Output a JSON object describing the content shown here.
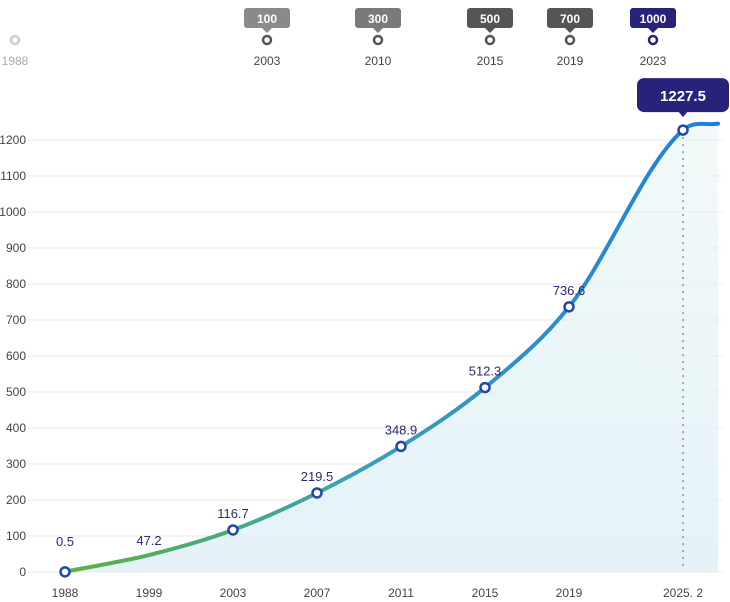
{
  "timeline": {
    "points": [
      {
        "year": "1988",
        "badge": null
      },
      {
        "year": "2003",
        "badge": "100"
      },
      {
        "year": "2010",
        "badge": "300"
      },
      {
        "year": "2015",
        "badge": "500"
      },
      {
        "year": "2019",
        "badge": "700"
      },
      {
        "year": "2023",
        "badge": "1000"
      }
    ]
  },
  "chart_data": {
    "type": "line",
    "categories": [
      "1988",
      "1999",
      "2003",
      "2007",
      "2011",
      "2015",
      "2019",
      "2025. 2"
    ],
    "values": [
      0.5,
      47.2,
      116.7,
      219.5,
      348.9,
      512.3,
      736.6,
      1227.5
    ],
    "labels": [
      "0.5",
      "47.2",
      "116.7",
      "219.5",
      "348.9",
      "512.3",
      "736.6",
      "1227.5"
    ],
    "markers": [
      true,
      false,
      true,
      true,
      true,
      true,
      true,
      true
    ],
    "yticks": [
      0,
      100,
      200,
      300,
      400,
      500,
      600,
      700,
      800,
      900,
      1000,
      1100,
      1200
    ],
    "ylim": [
      0,
      1200
    ],
    "grid": true,
    "colors": {
      "start": "#5bb33c",
      "mid": "#3aa0b8",
      "end": "#1f7fd8",
      "label": "#2a2a7a",
      "highlight": "#27237a"
    }
  }
}
